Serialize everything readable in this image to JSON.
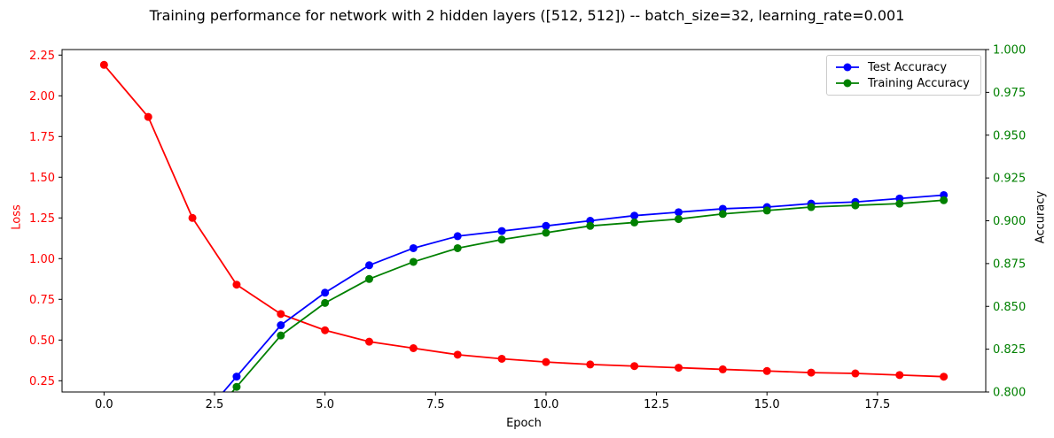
{
  "chart_data": {
    "type": "line",
    "title": "Training performance for network with 2 hidden layers ([512, 512]) -- batch_size=32, learning_rate=0.001",
    "xlabel": "Epoch",
    "ylabel_left": "Loss",
    "ylabel_right": "Accuracy",
    "x": [
      0,
      1,
      2,
      3,
      4,
      5,
      6,
      7,
      8,
      9,
      10,
      11,
      12,
      13,
      14,
      15,
      16,
      17,
      18,
      19
    ],
    "series": [
      {
        "name": "Loss",
        "axis": "left",
        "color": "#ff0000",
        "in_legend": false,
        "values": [
          2.19,
          1.87,
          1.25,
          0.84,
          0.66,
          0.56,
          0.49,
          0.45,
          0.41,
          0.385,
          0.365,
          0.35,
          0.34,
          0.33,
          0.32,
          0.31,
          0.3,
          0.295,
          0.285,
          0.275
        ]
      },
      {
        "name": "Test Accuracy",
        "axis": "right",
        "color": "#0000ff",
        "in_legend": true,
        "values": [
          null,
          null,
          null,
          0.809,
          0.839,
          0.858,
          0.874,
          0.884,
          0.891,
          0.894,
          0.897,
          0.9,
          0.903,
          0.905,
          0.907,
          0.908,
          0.91,
          0.911,
          0.913,
          0.915
        ]
      },
      {
        "name": "Training Accuracy",
        "axis": "right",
        "color": "#008000",
        "in_legend": true,
        "values": [
          null,
          null,
          null,
          0.803,
          0.833,
          0.852,
          0.866,
          0.876,
          0.884,
          0.889,
          0.893,
          0.897,
          0.899,
          0.901,
          0.904,
          0.906,
          0.908,
          0.909,
          0.91,
          0.912
        ]
      }
    ],
    "legend": {
      "position": "top-right",
      "entries": [
        "Test Accuracy",
        "Training Accuracy"
      ],
      "colors": [
        "#0000ff",
        "#008000"
      ]
    },
    "axes": {
      "xlim": [
        -0.95,
        19.95
      ],
      "ylim_left": [
        0.181,
        2.284
      ],
      "ylim_right": [
        0.8,
        1.0
      ],
      "grid": false,
      "spine_color": "#000000",
      "xticks": {
        "values": [
          0,
          2.5,
          5,
          7.5,
          10,
          12.5,
          15,
          17.5
        ],
        "labels": [
          "0.0",
          "2.5",
          "5.0",
          "7.5",
          "10.0",
          "12.5",
          "15.0",
          "17.5"
        ],
        "color": "#000000"
      },
      "yticks_left": {
        "values": [
          0.25,
          0.5,
          0.75,
          1.0,
          1.25,
          1.5,
          1.75,
          2.0,
          2.25
        ],
        "labels": [
          "0.25",
          "0.50",
          "0.75",
          "1.00",
          "1.25",
          "1.50",
          "1.75",
          "2.00",
          "2.25"
        ],
        "color": "#ff0000"
      },
      "yticks_right": {
        "values": [
          0.8,
          0.825,
          0.85,
          0.875,
          0.9,
          0.925,
          0.95,
          0.975,
          1.0
        ],
        "labels": [
          "0.800",
          "0.825",
          "0.850",
          "0.875",
          "0.900",
          "0.925",
          "0.950",
          "0.975",
          "1.000"
        ],
        "color": "#008000"
      }
    }
  }
}
